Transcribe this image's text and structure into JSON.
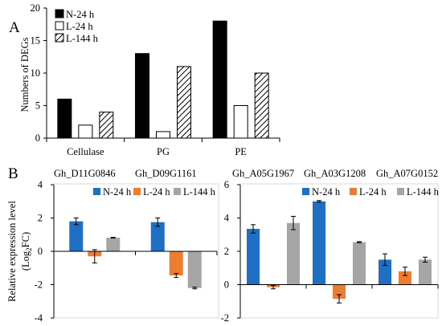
{
  "panel_labels": {
    "a": "A",
    "b": "B"
  },
  "colors": {
    "n24_a": "#000000",
    "l24_a": "#ffffff",
    "n24_b": "#1f6fc5",
    "l24_b": "#ed7d31",
    "l144_b": "#a5a5a5"
  },
  "chart_data": [
    {
      "type": "bar",
      "ylabel": "Numbers of DEGs",
      "ylim": [
        0,
        20
      ],
      "yticks": [
        0,
        5,
        10,
        15,
        20
      ],
      "categories": [
        "Cellulase",
        "PG",
        "PE"
      ],
      "legend": "top-left",
      "series": [
        {
          "name": "N-24 h",
          "fill": "solid-black",
          "values": [
            6,
            13,
            18
          ]
        },
        {
          "name": "L-24 h",
          "fill": "white",
          "values": [
            2,
            1,
            5
          ]
        },
        {
          "name": "L-144 h",
          "fill": "diagonal-hatch",
          "values": [
            4,
            11,
            10
          ]
        }
      ]
    },
    {
      "type": "bar",
      "ylabel": "Relative expression level",
      "ylabel2": "(Log",
      "ylabel2_sub": "2",
      "ylabel2_end": "FC)",
      "ylim": [
        -4,
        4
      ],
      "yticks": [
        -4,
        -2,
        0,
        2,
        4
      ],
      "categories": [
        "Gh_D11G0846",
        "Gh_D09G1161"
      ],
      "legend": "top",
      "series": [
        {
          "name": "N-24 h",
          "values": [
            1.8,
            1.75
          ],
          "errors": [
            0.2,
            0.25
          ]
        },
        {
          "name": "L-24 h",
          "values": [
            -0.3,
            -1.45
          ],
          "errors": [
            0.4,
            0.12
          ]
        },
        {
          "name": "L-144 h",
          "values": [
            0.82,
            -2.2
          ],
          "errors": [
            0.02,
            0.05
          ]
        }
      ]
    },
    {
      "type": "bar",
      "ylim": [
        -2,
        6
      ],
      "yticks": [
        -2,
        0,
        2,
        4,
        6
      ],
      "categories": [
        "Gh_A05G1967",
        "Gh_A03G1208",
        "Gh_A07G0152"
      ],
      "legend": "top",
      "series": [
        {
          "name": "N-24 h",
          "values": [
            3.35,
            5.0,
            1.5
          ],
          "errors": [
            0.25,
            0.05,
            0.35
          ]
        },
        {
          "name": "L-24 h",
          "values": [
            -0.15,
            -0.85,
            0.8
          ],
          "errors": [
            0.1,
            0.25,
            0.25
          ]
        },
        {
          "name": "L-144 h",
          "values": [
            3.7,
            2.55,
            1.5
          ],
          "errors": [
            0.4,
            0.03,
            0.15
          ]
        }
      ]
    }
  ]
}
